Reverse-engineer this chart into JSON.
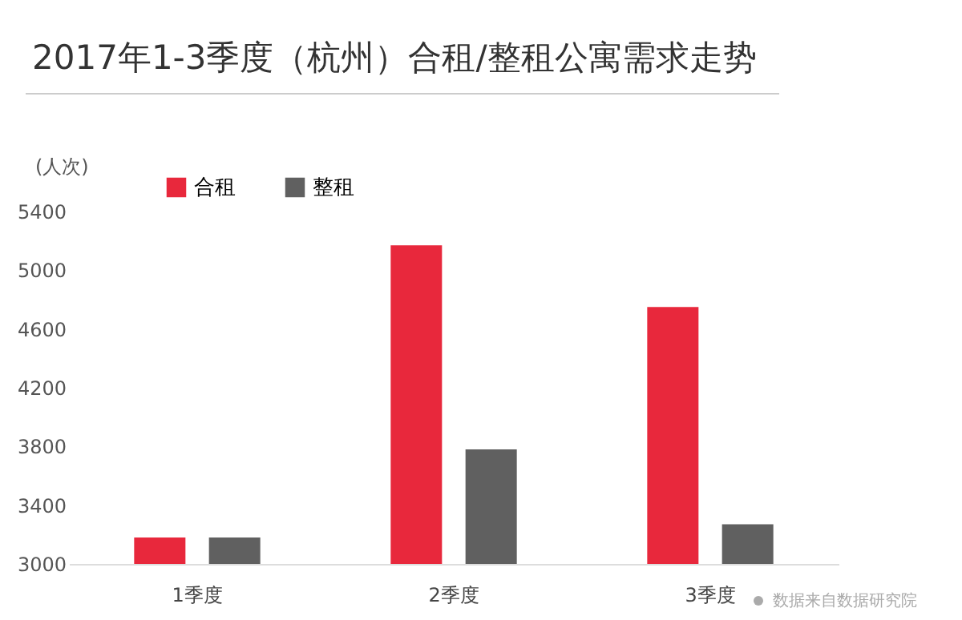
{
  "chart_data": {
    "type": "bar",
    "title": "2017年1-3季度（杭州）合租/整租公寓需求走势",
    "ylabel": "(人次)",
    "categories": [
      "1季度",
      "2季度",
      "3季度"
    ],
    "series": [
      {
        "name": "合租",
        "color": "#e8283c",
        "values": [
          3180,
          5170,
          4750
        ]
      },
      {
        "name": "整租",
        "color": "#606060",
        "values": [
          3180,
          3780,
          3270
        ]
      }
    ],
    "ylim": [
      3000,
      5400
    ],
    "yticks": [
      3000,
      3400,
      3800,
      4200,
      4600,
      5000,
      5400
    ],
    "grid": false,
    "legend": "top left",
    "annotations": [
      "数据来自数据研究院"
    ]
  }
}
